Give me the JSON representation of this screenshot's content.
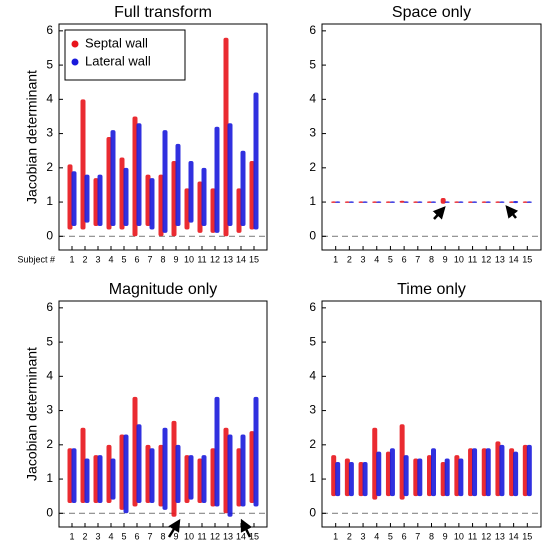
{
  "chart_data": [
    {
      "type": "strip",
      "title": "Full transform",
      "ylabel": "Jacobian determinant",
      "xlabel": "Subject #",
      "x": [
        1,
        2,
        3,
        4,
        5,
        6,
        7,
        8,
        9,
        10,
        11,
        12,
        13,
        14,
        15
      ],
      "xlim": [
        0,
        16
      ],
      "xticks": [
        1,
        2,
        3,
        4,
        5,
        6,
        7,
        8,
        9,
        10,
        11,
        12,
        13,
        14,
        15
      ],
      "ylim": [
        -0.4,
        6.2
      ],
      "yticks": [
        0,
        1,
        2,
        3,
        4,
        5,
        6
      ],
      "hline": 0,
      "legend": "upper left",
      "series": [
        {
          "name": "Septal wall",
          "color": "#e8141b",
          "min": [
            0.2,
            0.2,
            0.3,
            0.2,
            0.2,
            0.0,
            0.3,
            0.0,
            0.0,
            0.2,
            0.1,
            0.1,
            0.0,
            0.1,
            0.2
          ],
          "max": [
            2.1,
            4.0,
            1.7,
            2.9,
            2.3,
            3.5,
            1.8,
            1.8,
            2.2,
            1.4,
            1.6,
            1.4,
            5.8,
            1.4,
            2.2
          ]
        },
        {
          "name": "Lateral wall",
          "color": "#1a1adb",
          "min": [
            0.3,
            0.4,
            0.3,
            0.3,
            0.3,
            0.3,
            0.2,
            0.1,
            0.3,
            0.4,
            0.3,
            0.1,
            0.3,
            0.3,
            0.2
          ],
          "max": [
            1.9,
            1.8,
            1.8,
            3.1,
            2.0,
            3.3,
            1.7,
            3.1,
            2.7,
            2.2,
            2.0,
            3.2,
            3.3,
            2.5,
            4.2
          ]
        }
      ]
    },
    {
      "type": "strip",
      "title": "Space only",
      "x": [
        1,
        2,
        3,
        4,
        5,
        6,
        7,
        8,
        9,
        10,
        11,
        12,
        13,
        14,
        15
      ],
      "xlim": [
        0,
        16
      ],
      "xticks": [
        1,
        2,
        3,
        4,
        5,
        6,
        7,
        8,
        9,
        10,
        11,
        12,
        13,
        14,
        15
      ],
      "ylim": [
        -0.4,
        6.2
      ],
      "yticks": [
        0,
        1,
        2,
        3,
        4,
        5,
        6
      ],
      "hline": 0,
      "series": [
        {
          "color": "#e8141b",
          "min": [
            0.98,
            0.98,
            0.98,
            0.98,
            0.98,
            0.98,
            0.98,
            0.98,
            0.95,
            0.98,
            0.98,
            0.98,
            0.98,
            0.98,
            0.98
          ],
          "max": [
            1.02,
            1.02,
            1.02,
            1.02,
            1.02,
            1.04,
            1.02,
            1.02,
            1.12,
            1.02,
            1.02,
            1.02,
            1.02,
            1.02,
            1.02
          ]
        },
        {
          "color": "#1a1adb",
          "min": [
            0.98,
            0.98,
            0.98,
            0.98,
            0.98,
            0.98,
            0.98,
            0.98,
            0.98,
            0.98,
            0.98,
            0.98,
            0.98,
            0.97,
            0.98
          ],
          "max": [
            1.02,
            1.02,
            1.02,
            1.02,
            1.02,
            1.02,
            1.02,
            1.02,
            1.02,
            1.02,
            1.02,
            1.02,
            1.02,
            1.03,
            1.02
          ]
        }
      ]
    },
    {
      "type": "strip",
      "title": "Magnitude only",
      "ylabel": "Jacobian determinant",
      "x": [
        1,
        2,
        3,
        4,
        5,
        6,
        7,
        8,
        9,
        10,
        11,
        12,
        13,
        14,
        15
      ],
      "xlim": [
        0,
        16
      ],
      "xticks": [
        1,
        2,
        3,
        4,
        5,
        6,
        7,
        8,
        9,
        10,
        11,
        12,
        13,
        14,
        15
      ],
      "ylim": [
        -0.4,
        6.2
      ],
      "yticks": [
        0,
        1,
        2,
        3,
        4,
        5,
        6
      ],
      "hline": 0,
      "series": [
        {
          "color": "#e8141b",
          "min": [
            0.3,
            0.3,
            0.3,
            0.3,
            0.1,
            0.2,
            0.3,
            0.2,
            -0.1,
            0.3,
            0.3,
            0.2,
            0.0,
            0.2,
            0.3
          ],
          "max": [
            1.9,
            2.5,
            1.7,
            2.0,
            2.3,
            3.4,
            2.0,
            2.0,
            2.7,
            1.7,
            1.6,
            1.9,
            2.5,
            1.9,
            2.4
          ]
        },
        {
          "color": "#1a1adb",
          "min": [
            0.3,
            0.3,
            0.3,
            0.4,
            0.0,
            0.3,
            0.3,
            0.1,
            0.3,
            0.4,
            0.3,
            0.2,
            -0.1,
            0.2,
            0.2
          ],
          "max": [
            1.9,
            1.6,
            1.7,
            1.6,
            2.3,
            2.6,
            1.9,
            2.5,
            2.0,
            1.7,
            1.7,
            3.4,
            2.3,
            2.3,
            3.4
          ]
        }
      ]
    },
    {
      "type": "strip",
      "title": "Time only",
      "x": [
        1,
        2,
        3,
        4,
        5,
        6,
        7,
        8,
        9,
        10,
        11,
        12,
        13,
        14,
        15
      ],
      "xlim": [
        0,
        16
      ],
      "xticks": [
        1,
        2,
        3,
        4,
        5,
        6,
        7,
        8,
        9,
        10,
        11,
        12,
        13,
        14,
        15
      ],
      "ylim": [
        -0.4,
        6.2
      ],
      "yticks": [
        0,
        1,
        2,
        3,
        4,
        5,
        6
      ],
      "hline": 0,
      "series": [
        {
          "color": "#e8141b",
          "min": [
            0.5,
            0.5,
            0.5,
            0.4,
            0.5,
            0.4,
            0.5,
            0.5,
            0.5,
            0.5,
            0.5,
            0.5,
            0.5,
            0.5,
            0.5
          ],
          "max": [
            1.7,
            1.6,
            1.5,
            2.5,
            1.8,
            2.6,
            1.6,
            1.7,
            1.5,
            1.7,
            1.9,
            1.9,
            2.1,
            1.9,
            2.0
          ]
        },
        {
          "color": "#1a1adb",
          "min": [
            0.5,
            0.5,
            0.5,
            0.5,
            0.5,
            0.5,
            0.5,
            0.5,
            0.5,
            0.5,
            0.5,
            0.5,
            0.5,
            0.5,
            0.5
          ],
          "max": [
            1.5,
            1.5,
            1.5,
            1.8,
            1.9,
            1.7,
            1.6,
            1.9,
            1.6,
            1.6,
            1.9,
            1.9,
            2.0,
            1.8,
            2.0
          ]
        }
      ]
    }
  ]
}
